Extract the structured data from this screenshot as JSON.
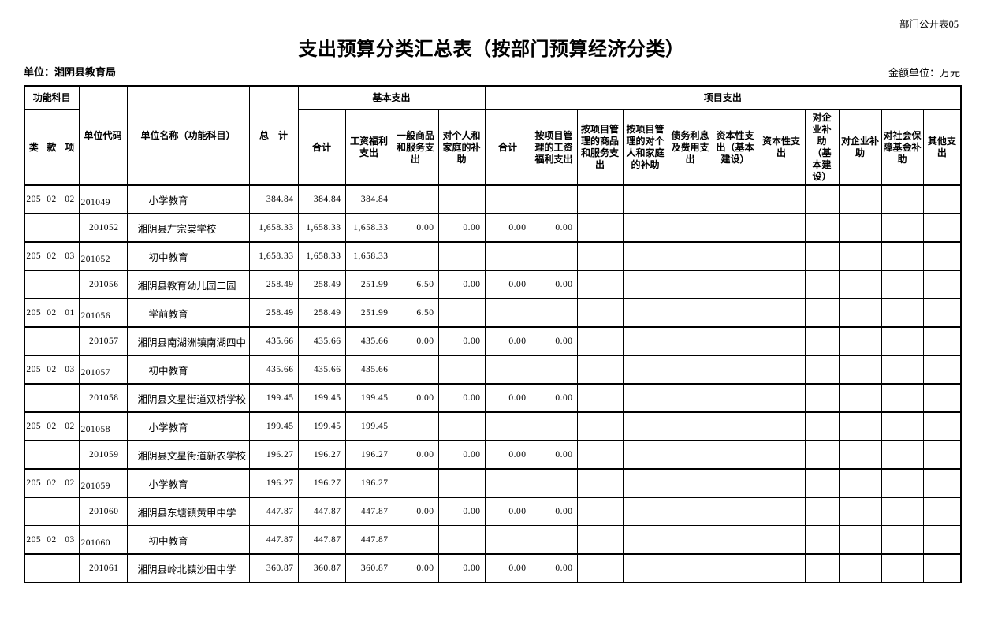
{
  "page": {
    "corner_label": "部门公开表05",
    "title": "支出预算分类汇总表（按部门预算经济分类）",
    "unit_label": "单位：湘阴县教育局",
    "amount_unit_label": "金额单位：万元"
  },
  "table": {
    "header": {
      "func_group": "功能科目",
      "lei": "类",
      "kuan": "款",
      "xiang": "项",
      "unit_code": "单位代码",
      "unit_name": "单位名称（功能科目）",
      "total": "总　计",
      "basic_group": "基本支出",
      "basic_cols": [
        "合计",
        "工资福利支出",
        "一般商品和服务支出",
        "对个人和家庭的补助"
      ],
      "project_group": "项目支出",
      "project_cols": [
        "合计",
        "按项目管理的工资福利支出",
        "按项目管理的商品和服务支出",
        "按项目管理的对个人和家庭的补助",
        "债务利息及费用支出",
        "资本性支出（基本建设）",
        "资本性支出",
        "对企业补助（基本建设）",
        "对企业补助",
        "对社会保障基金补助",
        "其他支出"
      ]
    },
    "rows": [
      {
        "type": "function",
        "lei": "205",
        "kuan": "02",
        "xiang": "02",
        "code": "201049",
        "name": "小学教育",
        "values": [
          "384.84",
          "384.84",
          "384.84",
          "",
          "",
          "",
          "",
          "",
          "",
          "",
          "",
          "",
          "",
          "",
          "",
          ""
        ]
      },
      {
        "type": "school",
        "lei": "",
        "kuan": "",
        "xiang": "",
        "code": "201052",
        "name": "湘阴县左宗棠学校",
        "values": [
          "1,658.33",
          "1,658.33",
          "1,658.33",
          "0.00",
          "0.00",
          "0.00",
          "0.00",
          "",
          "",
          "",
          "",
          "",
          "",
          "",
          "",
          ""
        ]
      },
      {
        "type": "function",
        "lei": "205",
        "kuan": "02",
        "xiang": "03",
        "code": "201052",
        "name": "初中教育",
        "values": [
          "1,658.33",
          "1,658.33",
          "1,658.33",
          "",
          "",
          "",
          "",
          "",
          "",
          "",
          "",
          "",
          "",
          "",
          "",
          ""
        ]
      },
      {
        "type": "school",
        "lei": "",
        "kuan": "",
        "xiang": "",
        "code": "201056",
        "name": "湘阴县教育幼儿园二园",
        "values": [
          "258.49",
          "258.49",
          "251.99",
          "6.50",
          "0.00",
          "0.00",
          "0.00",
          "",
          "",
          "",
          "",
          "",
          "",
          "",
          "",
          ""
        ]
      },
      {
        "type": "function",
        "lei": "205",
        "kuan": "02",
        "xiang": "01",
        "code": "201056",
        "name": "学前教育",
        "values": [
          "258.49",
          "258.49",
          "251.99",
          "6.50",
          "",
          "",
          "",
          "",
          "",
          "",
          "",
          "",
          "",
          "",
          "",
          ""
        ]
      },
      {
        "type": "school",
        "lei": "",
        "kuan": "",
        "xiang": "",
        "code": "201057",
        "name": "湘阴县南湖洲镇南湖四中",
        "values": [
          "435.66",
          "435.66",
          "435.66",
          "0.00",
          "0.00",
          "0.00",
          "0.00",
          "",
          "",
          "",
          "",
          "",
          "",
          "",
          "",
          ""
        ]
      },
      {
        "type": "function",
        "lei": "205",
        "kuan": "02",
        "xiang": "03",
        "code": "201057",
        "name": "初中教育",
        "values": [
          "435.66",
          "435.66",
          "435.66",
          "",
          "",
          "",
          "",
          "",
          "",
          "",
          "",
          "",
          "",
          "",
          "",
          ""
        ]
      },
      {
        "type": "school",
        "lei": "",
        "kuan": "",
        "xiang": "",
        "code": "201058",
        "name": "湘阴县文星街道双桥学校",
        "values": [
          "199.45",
          "199.45",
          "199.45",
          "0.00",
          "0.00",
          "0.00",
          "0.00",
          "",
          "",
          "",
          "",
          "",
          "",
          "",
          "",
          ""
        ]
      },
      {
        "type": "function",
        "lei": "205",
        "kuan": "02",
        "xiang": "02",
        "code": "201058",
        "name": "小学教育",
        "values": [
          "199.45",
          "199.45",
          "199.45",
          "",
          "",
          "",
          "",
          "",
          "",
          "",
          "",
          "",
          "",
          "",
          "",
          ""
        ]
      },
      {
        "type": "school",
        "lei": "",
        "kuan": "",
        "xiang": "",
        "code": "201059",
        "name": "湘阴县文星街道新农学校",
        "values": [
          "196.27",
          "196.27",
          "196.27",
          "0.00",
          "0.00",
          "0.00",
          "0.00",
          "",
          "",
          "",
          "",
          "",
          "",
          "",
          "",
          ""
        ]
      },
      {
        "type": "function",
        "lei": "205",
        "kuan": "02",
        "xiang": "02",
        "code": "201059",
        "name": "小学教育",
        "values": [
          "196.27",
          "196.27",
          "196.27",
          "",
          "",
          "",
          "",
          "",
          "",
          "",
          "",
          "",
          "",
          "",
          "",
          ""
        ]
      },
      {
        "type": "school",
        "lei": "",
        "kuan": "",
        "xiang": "",
        "code": "201060",
        "name": "湘阴县东塘镇黄甲中学",
        "values": [
          "447.87",
          "447.87",
          "447.87",
          "0.00",
          "0.00",
          "0.00",
          "0.00",
          "",
          "",
          "",
          "",
          "",
          "",
          "",
          "",
          ""
        ]
      },
      {
        "type": "function",
        "lei": "205",
        "kuan": "02",
        "xiang": "03",
        "code": "201060",
        "name": "初中教育",
        "values": [
          "447.87",
          "447.87",
          "447.87",
          "",
          "",
          "",
          "",
          "",
          "",
          "",
          "",
          "",
          "",
          "",
          "",
          ""
        ]
      },
      {
        "type": "school",
        "lei": "",
        "kuan": "",
        "xiang": "",
        "code": "201061",
        "name": "湘阴县岭北镇沙田中学",
        "values": [
          "360.87",
          "360.87",
          "360.87",
          "0.00",
          "0.00",
          "0.00",
          "0.00",
          "",
          "",
          "",
          "",
          "",
          "",
          "",
          "",
          ""
        ]
      }
    ]
  }
}
